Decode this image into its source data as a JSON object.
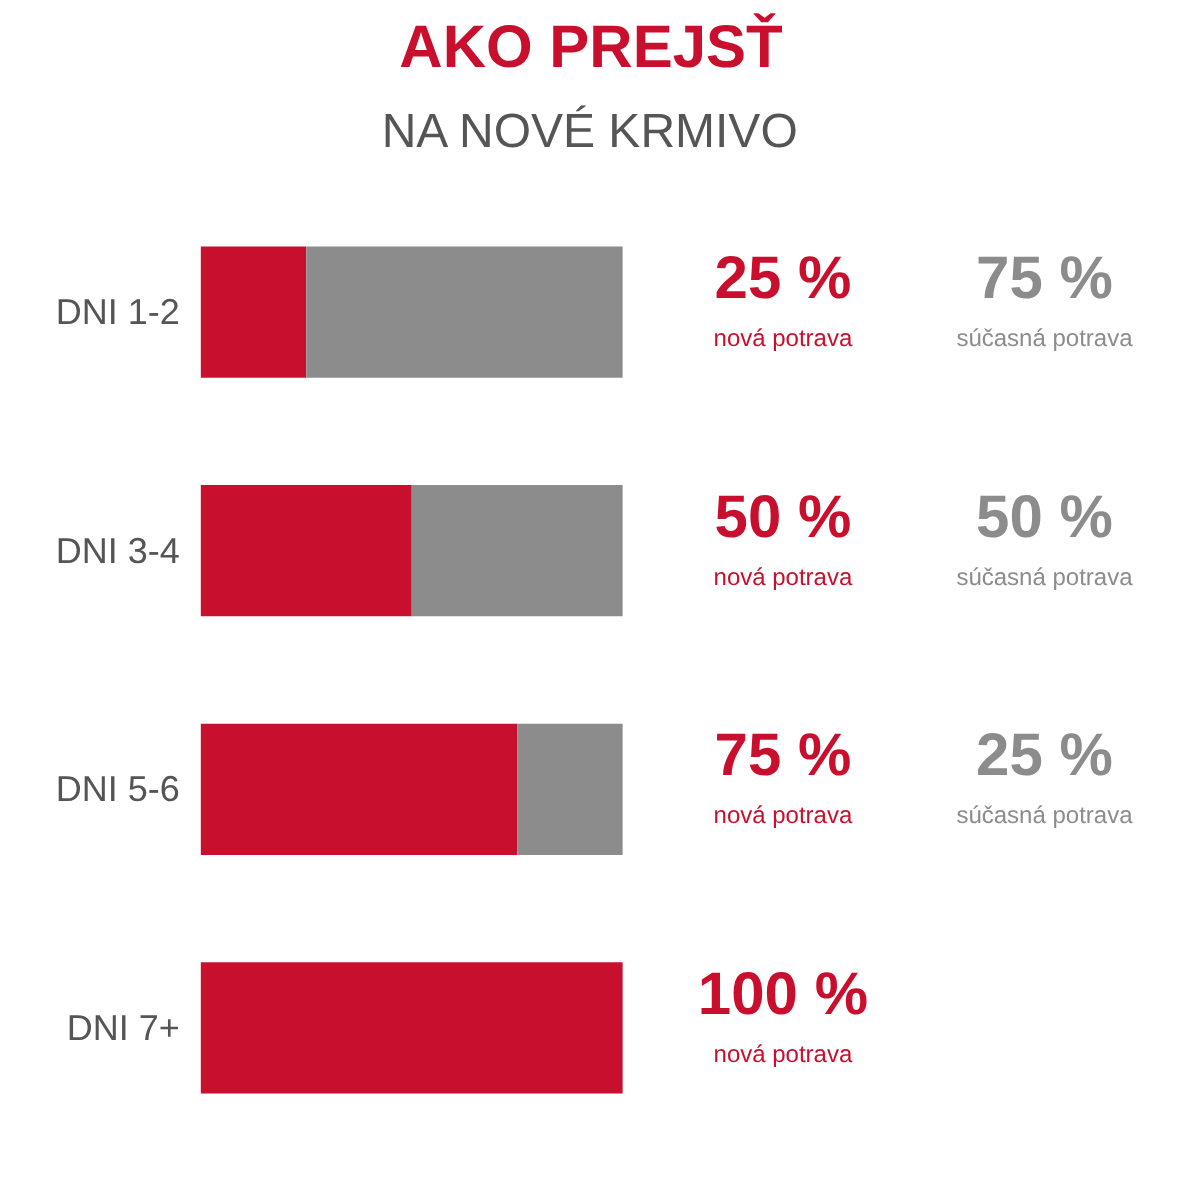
{
  "chart_data": {
    "type": "bar",
    "orientation": "horizontal",
    "stacked": true,
    "title": "AKO PREJSŤ",
    "subtitle": "NA NOVÉ KRMIVO",
    "categories": [
      "DNI 1-2",
      "DNI 3-4",
      "DNI 5-6",
      "DNI 7+"
    ],
    "series": [
      {
        "name": "nová potrava",
        "color": "#c8102e",
        "values": [
          25,
          50,
          75,
          100
        ],
        "value_labels": [
          "25 %",
          "50 %",
          "75 %",
          "100 %"
        ]
      },
      {
        "name": "súčasná potrava",
        "color": "#8c8c8c",
        "values": [
          75,
          50,
          25,
          0
        ],
        "value_labels": [
          "75 %",
          "50 %",
          "25 %",
          null
        ]
      }
    ]
  }
}
